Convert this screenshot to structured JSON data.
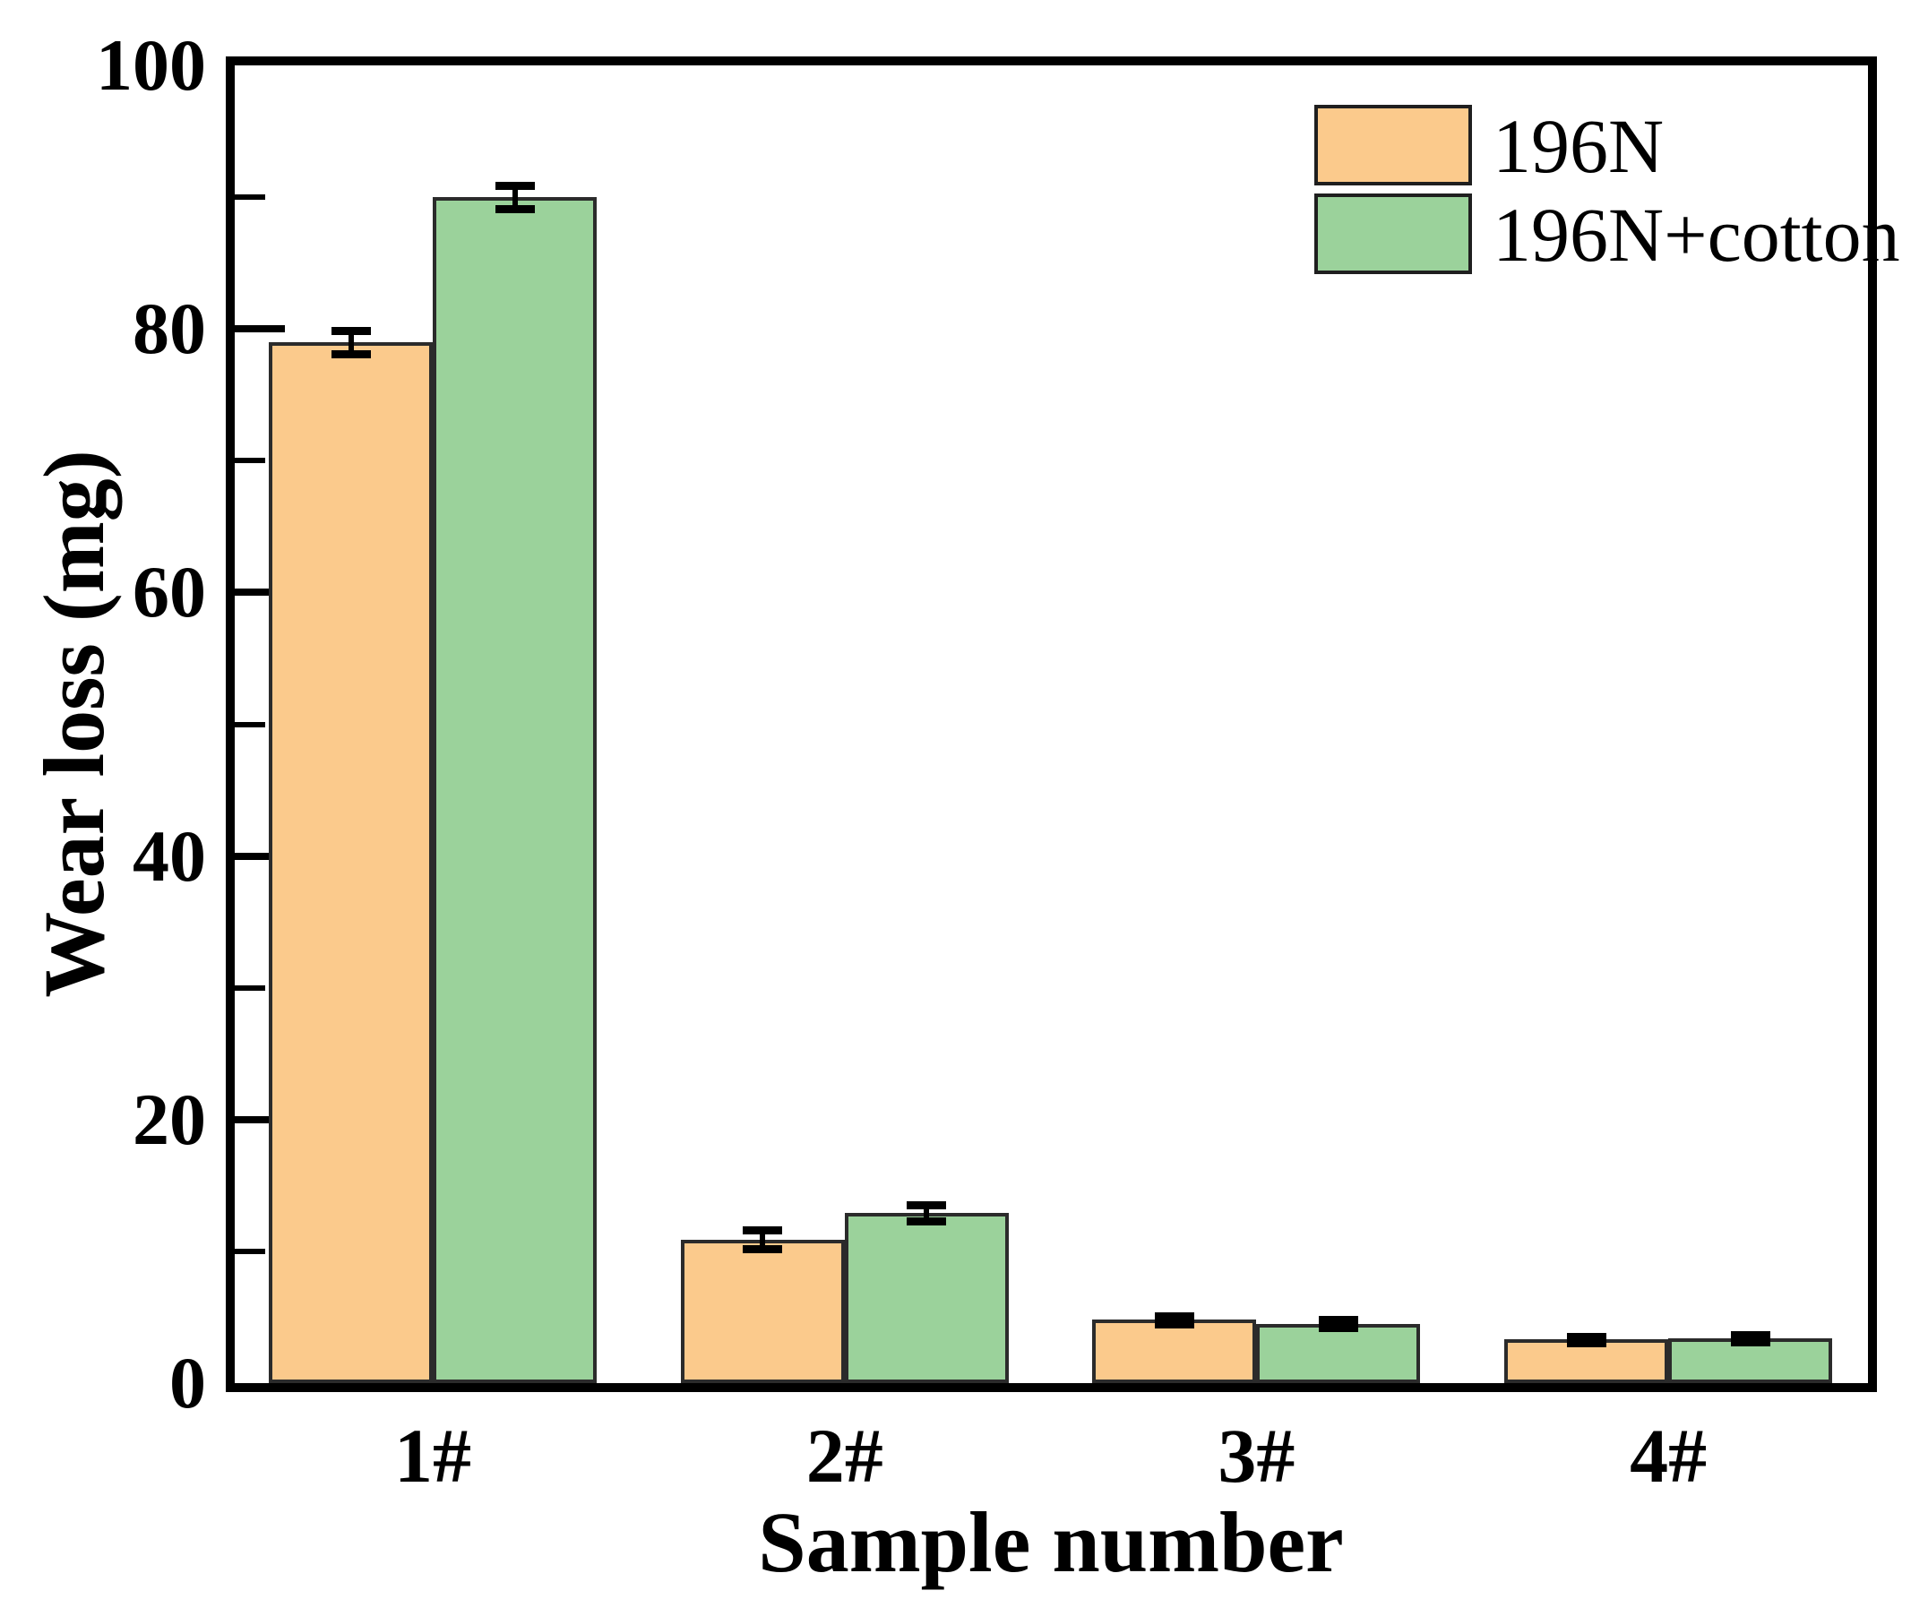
{
  "chart_data": {
    "type": "bar",
    "title": "",
    "xlabel": "Sample number",
    "ylabel": "Wear loss (mg)",
    "categories": [
      "1#",
      "2#",
      "3#",
      "4#"
    ],
    "series": [
      {
        "name": "196N",
        "color": "#FBCA8C",
        "edge_color": "#2b2b2b",
        "values": [
          79.0,
          10.9,
          4.8,
          3.3
        ],
        "errors": [
          0.9,
          0.7,
          0.3,
          0.25
        ]
      },
      {
        "name": "196N+cotton",
        "color": "#9BD29B",
        "edge_color": "#2b2b2b",
        "values": [
          90.0,
          12.9,
          4.5,
          3.4
        ],
        "errors": [
          0.9,
          0.6,
          0.3,
          0.25
        ]
      }
    ],
    "ylim": [
      0,
      100
    ],
    "yticks": [
      0,
      20,
      40,
      60,
      80,
      100
    ],
    "yticks_minor": [
      10,
      30,
      50,
      70,
      90
    ],
    "grid": false,
    "legend_position": "top-right",
    "legend_frame": false,
    "error_bar_color": "#000000",
    "axis_color": "#000000",
    "background_color": "#ffffff"
  }
}
